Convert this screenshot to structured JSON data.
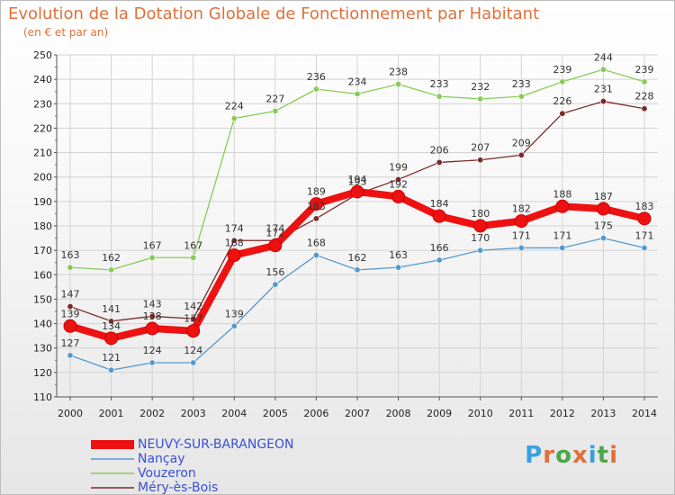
{
  "colors": {
    "title": "#e0703a",
    "legend_text": "#3a4fd8",
    "axis": "#555555",
    "grid": "#d2d2d2"
  },
  "logo": {
    "text": "Proxiti",
    "letters": [
      "P",
      "r",
      "o",
      "x",
      "i",
      "t",
      "i"
    ],
    "colors": [
      "#3aa0dd",
      "#e0703a",
      "#4aa84a",
      "#e0703a",
      "#3aa0dd",
      "#4aa84a",
      "#e0703a"
    ]
  },
  "chart_data": {
    "type": "line",
    "title": "Evolution de la Dotation Globale de Fonctionnement par Habitant",
    "subtitle": "(en € et par an)",
    "xlabel": "",
    "ylabel": "",
    "ylim": [
      110,
      250
    ],
    "yticks": [
      110,
      120,
      130,
      140,
      150,
      160,
      170,
      180,
      190,
      200,
      210,
      220,
      230,
      240,
      250
    ],
    "grid": true,
    "legend_position": "bottom-left",
    "categories": [
      "2000",
      "2001",
      "2002",
      "2003",
      "2004",
      "2005",
      "2006",
      "2007",
      "2008",
      "2009",
      "2010",
      "2011",
      "2012",
      "2013",
      "2014"
    ],
    "series": [
      {
        "name": "NEUVY-SUR-BARANGEON",
        "color": "#ee1111",
        "values": [
          139,
          134,
          138,
          137,
          168,
          172,
          189,
          194,
          192,
          184,
          180,
          182,
          188,
          187,
          183
        ],
        "thick": true
      },
      {
        "name": "Nançay",
        "color": "#5599cc",
        "values": [
          127,
          121,
          124,
          124,
          139,
          156,
          168,
          162,
          163,
          166,
          170,
          171,
          171,
          175,
          171
        ]
      },
      {
        "name": "Vouzeron",
        "color": "#88cc55",
        "values": [
          163,
          162,
          167,
          167,
          224,
          227,
          236,
          234,
          238,
          233,
          232,
          233,
          239,
          244,
          239
        ]
      },
      {
        "name": "Méry-ès-Bois",
        "color": "#7a2a2a",
        "values": [
          147,
          141,
          143,
          142,
          174,
          174,
          183,
          193,
          199,
          206,
          207,
          209,
          226,
          231,
          228
        ]
      }
    ]
  }
}
